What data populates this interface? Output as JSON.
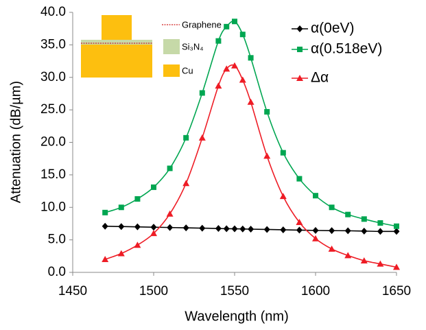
{
  "chart_data": {
    "type": "line",
    "x_label": "Wavelength (nm)",
    "y_label": "Attenuation (dB/µm)",
    "x": [
      1470,
      1480,
      1490,
      1500,
      1510,
      1520,
      1530,
      1540,
      1545,
      1550,
      1555,
      1560,
      1570,
      1580,
      1590,
      1600,
      1610,
      1620,
      1630,
      1640,
      1650
    ],
    "series": [
      {
        "name": "α(0eV)",
        "color": "#000000",
        "marker": "diamond",
        "values": [
          7.1,
          7.05,
          7.0,
          6.95,
          6.9,
          6.85,
          6.8,
          6.75,
          6.72,
          6.7,
          6.68,
          6.65,
          6.6,
          6.55,
          6.5,
          6.45,
          6.42,
          6.4,
          6.35,
          6.3,
          6.3
        ]
      },
      {
        "name": "α(0.518eV)",
        "color": "#00a651",
        "marker": "square",
        "values": [
          9.2,
          10.0,
          11.3,
          13.1,
          16.0,
          20.7,
          27.6,
          35.6,
          37.8,
          38.6,
          36.6,
          33.0,
          24.7,
          18.4,
          14.4,
          11.8,
          10.0,
          8.9,
          8.2,
          7.6,
          7.1
        ]
      },
      {
        "name": "Δα",
        "color": "#ee1c25",
        "marker": "triangle",
        "values": [
          2.0,
          2.9,
          4.2,
          6.0,
          9.0,
          13.7,
          20.7,
          28.7,
          31.3,
          31.8,
          29.6,
          26.2,
          17.9,
          11.7,
          7.7,
          5.2,
          3.6,
          2.6,
          1.8,
          1.3,
          0.8
        ]
      }
    ],
    "xlim": [
      1450,
      1650
    ],
    "xticks": [
      1450,
      1500,
      1550,
      1600,
      1650
    ],
    "ylim": [
      0,
      40
    ],
    "yticks": [
      {
        "value": 0,
        "label": "0.0"
      },
      {
        "value": 5,
        "label": "5.0"
      },
      {
        "value": 10,
        "label": "10.0"
      },
      {
        "value": 15,
        "label": "15.0"
      },
      {
        "value": 20,
        "label": "20.0"
      },
      {
        "value": 25,
        "label": "25.0"
      },
      {
        "value": 30,
        "label": "30.0"
      },
      {
        "value": 35,
        "label": "35.0"
      },
      {
        "value": 40,
        "label": "40.0"
      }
    ],
    "grid": false,
    "inset": {
      "labels": [
        "Graphene",
        "Si₃N₄",
        "Cu"
      ]
    }
  }
}
